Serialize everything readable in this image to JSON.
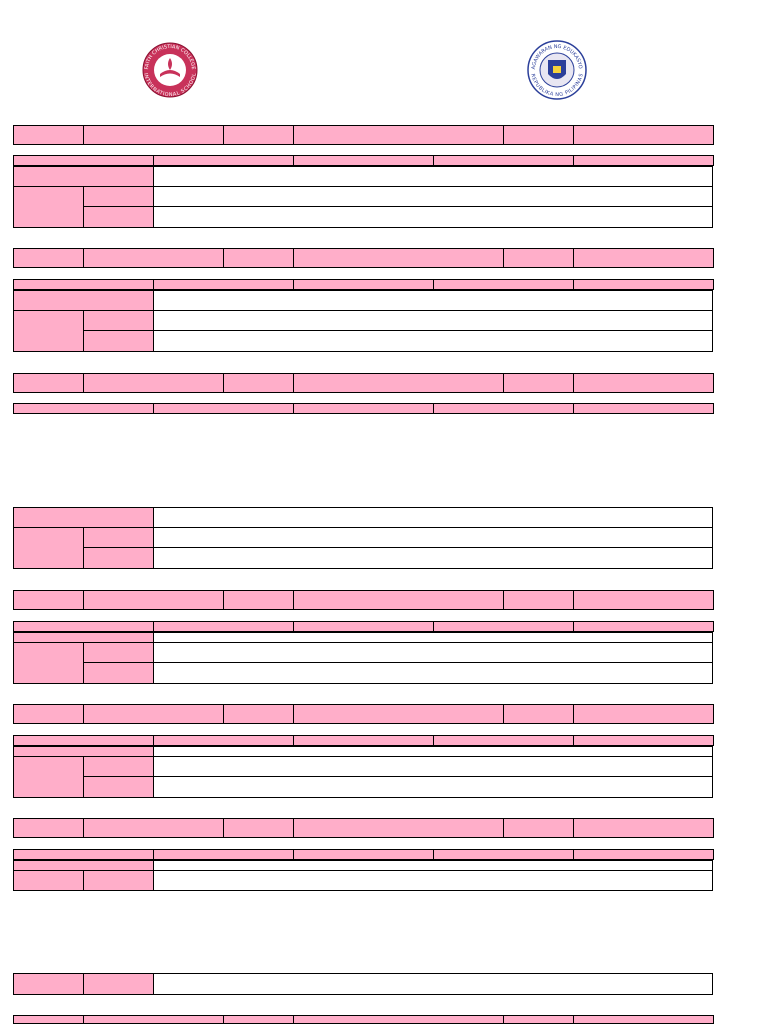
{
  "logos": {
    "left": {
      "top_text": "FAITH CHRISTIAN COLLEGE",
      "bottom_text": "INTERNATIONAL SCHOOL"
    },
    "right": {
      "top_text": "KAGAWARAN NG EDUKASYON",
      "bottom_text": "REPUBLIKA NG PILIPINAS"
    }
  }
}
